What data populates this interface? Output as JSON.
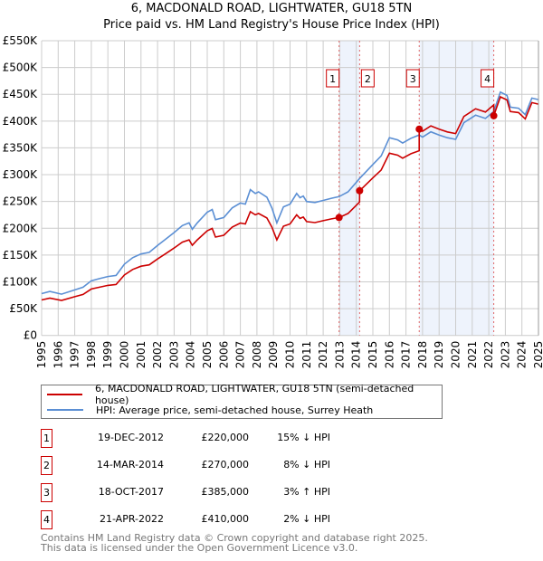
{
  "title_line1": "6, MACDONALD ROAD, LIGHTWATER, GU18 5TN",
  "title_line2": "Price paid vs. HM Land Registry's House Price Index (HPI)",
  "chart_data": {
    "type": "line",
    "title": "Price paid vs. HM Land Registry's House Price Index (HPI)",
    "xlim": [
      1995,
      2025
    ],
    "ylim": [
      0,
      550000
    ],
    "yticks": [
      0,
      50000,
      100000,
      150000,
      200000,
      250000,
      300000,
      350000,
      400000,
      450000,
      500000,
      550000
    ],
    "ytick_labels": [
      "£0",
      "£50K",
      "£100K",
      "£150K",
      "£200K",
      "£250K",
      "£300K",
      "£350K",
      "£400K",
      "£450K",
      "£500K",
      "£550K"
    ],
    "xticks": [
      1995,
      1996,
      1997,
      1998,
      1999,
      2000,
      2001,
      2002,
      2003,
      2004,
      2005,
      2006,
      2007,
      2008,
      2009,
      2010,
      2011,
      2012,
      2013,
      2014,
      2015,
      2016,
      2017,
      2018,
      2019,
      2020,
      2021,
      2022,
      2023,
      2024,
      2025
    ],
    "grid": true,
    "colors": {
      "property": "#cc0000",
      "hpi": "#5b8fd4",
      "shade": "#eef3fc"
    },
    "hpi": {
      "x": [
        1995,
        1995.5,
        1996.2,
        1997,
        1997.5,
        1998,
        1998.5,
        1999,
        1999.5,
        2000,
        2000.5,
        2001,
        2001.5,
        2002,
        2002.5,
        2003,
        2003.5,
        2003.9,
        2004.1,
        2004.4,
        2005,
        2005.3,
        2005.5,
        2006,
        2006.5,
        2007,
        2007.3,
        2007.6,
        2007.9,
        2008.1,
        2008.6,
        2008.9,
        2009.2,
        2009.6,
        2010,
        2010.4,
        2010.6,
        2010.8,
        2011,
        2011.5,
        2012,
        2012.5,
        2012.96,
        2013.5,
        2014.2,
        2015,
        2015.5,
        2016,
        2016.5,
        2016.8,
        2017.3,
        2017.8,
        2018,
        2018.5,
        2019,
        2019.5,
        2020,
        2020.5,
        2021.2,
        2021.8,
        2022.3,
        2022.7,
        2023.1,
        2023.3,
        2023.8,
        2024.2,
        2024.6,
        2025
      ],
      "y": [
        78000,
        82000,
        77000,
        85000,
        90000,
        102000,
        106000,
        110000,
        112000,
        133000,
        145000,
        152000,
        155000,
        168000,
        180000,
        192000,
        205000,
        210000,
        198000,
        210000,
        230000,
        235000,
        216000,
        220000,
        238000,
        247000,
        245000,
        272000,
        265000,
        268000,
        258000,
        238000,
        210000,
        240000,
        245000,
        265000,
        257000,
        260000,
        250000,
        248000,
        252000,
        256000,
        259000,
        268000,
        293000,
        319000,
        335000,
        369000,
        365000,
        359000,
        368000,
        374000,
        370000,
        380000,
        374000,
        369000,
        366000,
        397000,
        411000,
        405000,
        418000,
        454000,
        448000,
        426000,
        424000,
        412000,
        443000,
        440000
      ]
    },
    "sales": [
      {
        "n": "1",
        "date": "19-DEC-2012",
        "x": 2012.96,
        "price": 220000,
        "price_label": "£220,000",
        "pct": "15% ↓ HPI"
      },
      {
        "n": "2",
        "date": "14-MAR-2014",
        "x": 2014.2,
        "price": 270000,
        "price_label": "£270,000",
        "pct": "8% ↓ HPI"
      },
      {
        "n": "3",
        "date": "18-OCT-2017",
        "x": 2017.8,
        "price": 385000,
        "price_label": "£385,000",
        "pct": "3% ↑ HPI"
      },
      {
        "n": "4",
        "date": "21-APR-2022",
        "x": 2022.3,
        "price": 410000,
        "price_label": "£410,000",
        "pct": "2% ↓ HPI"
      }
    ],
    "legend": [
      "6, MACDONALD ROAD, LIGHTWATER, GU18 5TN (semi-detached house)",
      "HPI: Average price, semi-detached house, Surrey Heath"
    ],
    "legend_position": "below"
  },
  "footer_line1": "Contains HM Land Registry data © Crown copyright and database right 2025.",
  "footer_line2": "This data is licensed under the Open Government Licence v3.0."
}
